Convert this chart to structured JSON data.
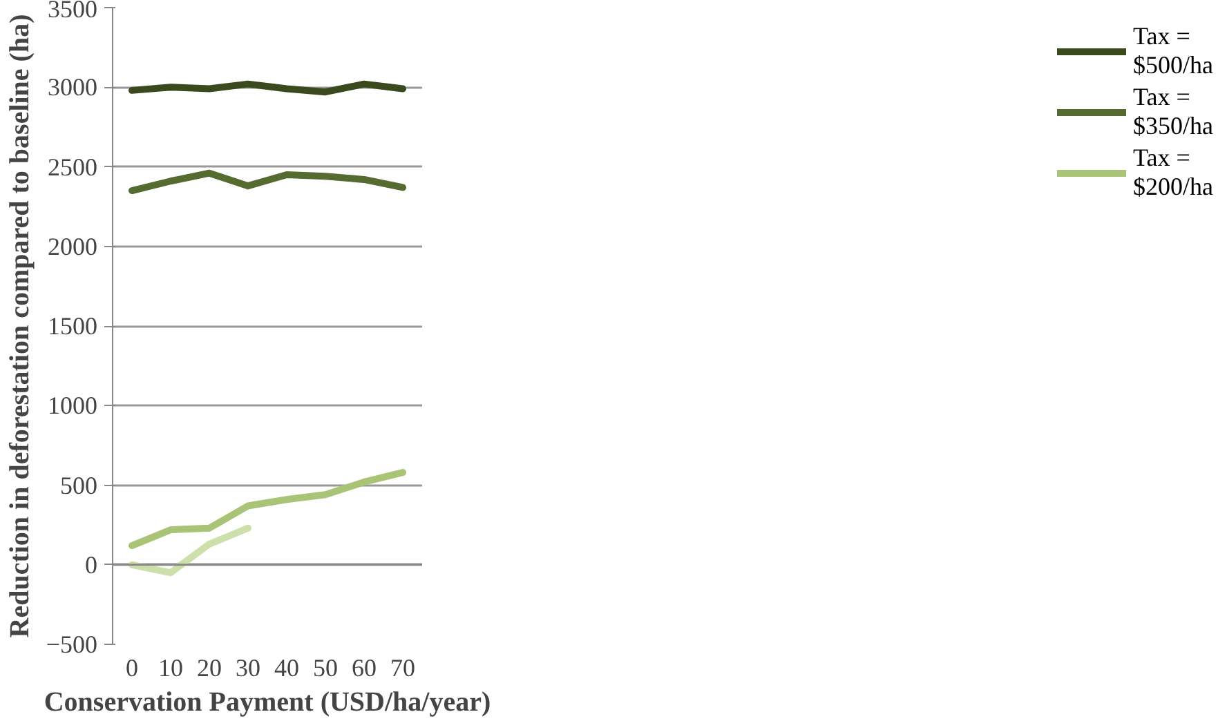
{
  "chart_data": {
    "type": "line",
    "xlabel": "Conservation Payment (USD/ha/year)",
    "ylabel": "Reduction in deforestation compared to baseline (ha)",
    "categories": [
      "0",
      "10",
      "20",
      "30",
      "40",
      "50",
      "60",
      "70"
    ],
    "series": [
      {
        "name": "Tax = $500/ha",
        "color": "#3a4a1c",
        "values": [
          2980,
          3000,
          2990,
          3020,
          2990,
          2970,
          3020,
          2990
        ]
      },
      {
        "name": "Tax = $350/ha",
        "color": "#556b2f",
        "values": [
          2350,
          2410,
          2460,
          2380,
          2450,
          2440,
          2420,
          2370
        ]
      },
      {
        "name": "Tax = $200/ha",
        "color": "#a9c476",
        "values": [
          120,
          220,
          230,
          370,
          410,
          440,
          520,
          580
        ]
      },
      {
        "color": "#cde0ac",
        "values": [
          0,
          -50,
          130,
          230,
          null,
          null,
          null,
          null
        ]
      }
    ],
    "ylim": [
      -500,
      3500
    ],
    "yticks": [
      -500,
      0,
      500,
      1000,
      1500,
      2000,
      2500,
      3000,
      3500
    ],
    "grid": "y",
    "legend": "right",
    "marker": "none",
    "line_style": "solid"
  }
}
